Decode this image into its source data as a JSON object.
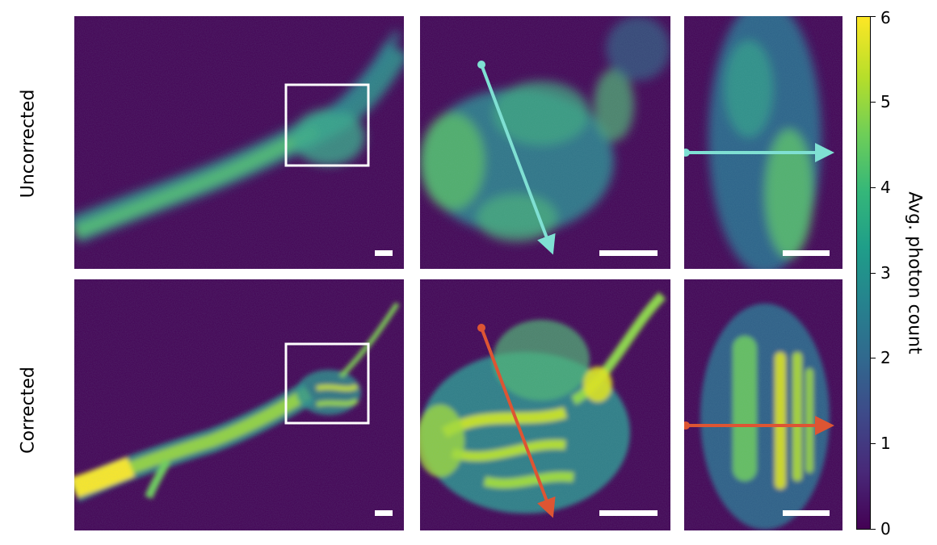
{
  "row_labels": {
    "top": "Uncorrected",
    "bottom": "Corrected"
  },
  "colorbar": {
    "label": "Avg. photon count",
    "ticks": [
      "0",
      "1",
      "2",
      "3",
      "4",
      "5",
      "6"
    ],
    "colormap": "viridis"
  },
  "colors": {
    "background": "#440154",
    "uncorrected_arrow": "#7fe0d3",
    "corrected_arrow": "#dd5533",
    "inset_box": "#ffffff",
    "scale_bar": "#ffffff"
  }
}
